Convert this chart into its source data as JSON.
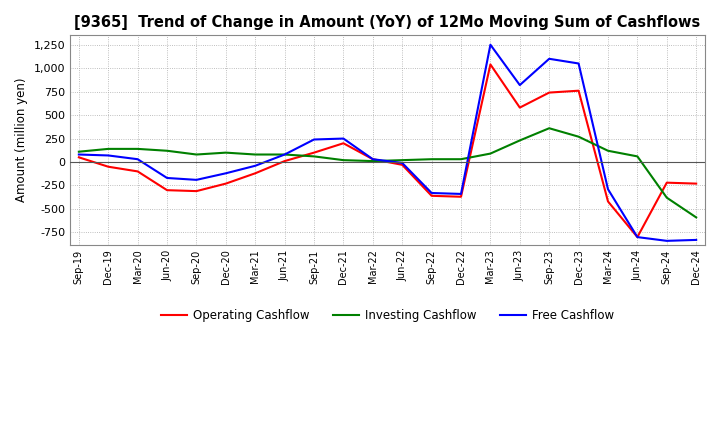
{
  "title": "[9365]  Trend of Change in Amount (YoY) of 12Mo Moving Sum of Cashflows",
  "ylabel": "Amount (million yen)",
  "ylim": [
    -880,
    1350
  ],
  "yticks": [
    -750,
    -500,
    -250,
    0,
    250,
    500,
    750,
    1000,
    1250
  ],
  "dates": [
    "Sep-19",
    "Dec-19",
    "Mar-20",
    "Jun-20",
    "Sep-20",
    "Dec-20",
    "Mar-21",
    "Jun-21",
    "Sep-21",
    "Dec-21",
    "Mar-22",
    "Jun-22",
    "Sep-22",
    "Dec-22",
    "Mar-23",
    "Jun-23",
    "Sep-23",
    "Dec-23",
    "Mar-24",
    "Jun-24",
    "Sep-24",
    "Dec-24"
  ],
  "operating": [
    50,
    -50,
    -100,
    -300,
    -310,
    -230,
    -120,
    10,
    100,
    200,
    30,
    -30,
    -360,
    -370,
    1040,
    580,
    740,
    760,
    -420,
    -800,
    -220,
    -230
  ],
  "investing": [
    110,
    140,
    140,
    120,
    80,
    100,
    80,
    80,
    60,
    20,
    10,
    20,
    30,
    30,
    90,
    230,
    360,
    270,
    120,
    60,
    -380,
    -590
  ],
  "free": [
    80,
    70,
    30,
    -170,
    -190,
    -120,
    -40,
    80,
    240,
    250,
    30,
    -10,
    -330,
    -340,
    1250,
    820,
    1100,
    1050,
    -290,
    -800,
    -840,
    -830
  ],
  "operating_color": "#ff0000",
  "investing_color": "#008000",
  "free_color": "#0000ff",
  "bg_color": "#ffffff",
  "grid_color": "#aaaaaa"
}
